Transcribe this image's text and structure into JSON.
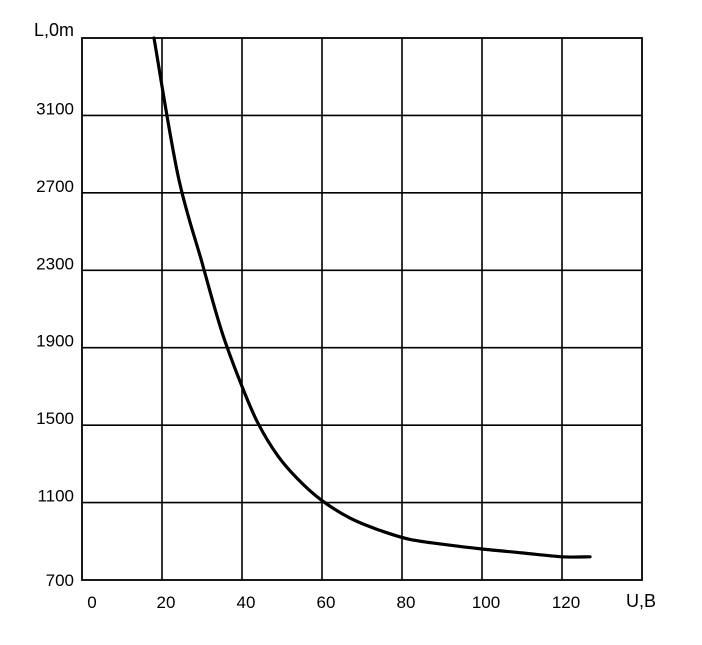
{
  "chart_data": {
    "type": "line",
    "xlabel": "U,B",
    "ylabel": "L,0m",
    "xlim": [
      0,
      140
    ],
    "ylim": [
      700,
      3500
    ],
    "x_ticks": [
      0,
      20,
      40,
      60,
      80,
      100,
      120
    ],
    "x_tick_labels": [
      "0",
      "20",
      "40",
      "60",
      "80",
      "100",
      "120"
    ],
    "y_ticks": [
      700,
      1100,
      1500,
      1900,
      2300,
      2700,
      3100
    ],
    "y_tick_labels": [
      "700",
      "1100",
      "1500",
      "1900",
      "2300",
      "2700",
      "3100"
    ],
    "grid": true,
    "series": [
      {
        "x": [
          18,
          24,
          30,
          35,
          40,
          44,
          49,
          54,
          60,
          67,
          74,
          82,
          92,
          100,
          110,
          120,
          127
        ],
        "y": [
          3500,
          2790,
          2340,
          1980,
          1700,
          1510,
          1340,
          1220,
          1110,
          1020,
          960,
          910,
          880,
          860,
          840,
          820,
          820
        ]
      }
    ]
  }
}
